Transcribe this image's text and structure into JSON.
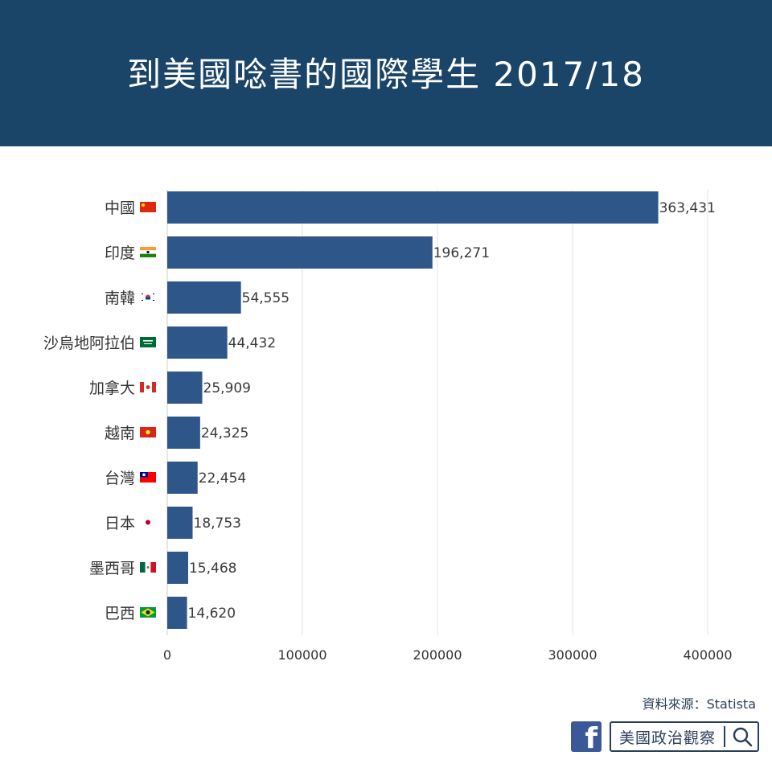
{
  "header": {
    "title": "到美國唸書的國際學生 2017/18"
  },
  "chart_data": {
    "type": "bar",
    "orientation": "horizontal",
    "categories": [
      "中國",
      "印度",
      "南韓",
      "沙烏地阿拉伯",
      "加拿大",
      "越南",
      "台灣",
      "日本",
      "墨西哥",
      "巴西"
    ],
    "values": [
      363431,
      196271,
      54555,
      44432,
      25909,
      24325,
      22454,
      18753,
      15468,
      14620
    ],
    "value_labels": [
      "363,431",
      "196,271",
      "54,555",
      "44,432",
      "25,909",
      "24,325",
      "22,454",
      "18,753",
      "15,468",
      "14,620"
    ],
    "flags": [
      "china-flag-icon",
      "india-flag-icon",
      "south-korea-flag-icon",
      "saudi-arabia-flag-icon",
      "canada-flag-icon",
      "vietnam-flag-icon",
      "taiwan-flag-icon",
      "japan-flag-icon",
      "mexico-flag-icon",
      "brazil-flag-icon"
    ],
    "xlim": [
      0,
      400000
    ],
    "x_ticks": [
      0,
      100000,
      200000,
      300000,
      400000
    ],
    "x_tick_labels": [
      "0",
      "100000",
      "200000",
      "300000",
      "400000"
    ],
    "grid": "vertical",
    "bar_color": "#2e5689"
  },
  "footer": {
    "source": "資料來源：Statista",
    "brand_icon": "facebook-icon",
    "brand_name": "美國政治觀察",
    "search_icon": "search-icon"
  }
}
